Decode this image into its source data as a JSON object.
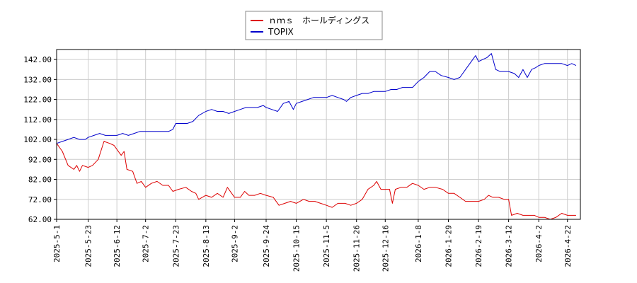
{
  "chart_data": {
    "type": "line",
    "title": "",
    "xlabel": "",
    "ylabel": "",
    "ylim": [
      62,
      147
    ],
    "yticks": [
      "142.00",
      "132.00",
      "122.00",
      "112.00",
      "102.00",
      "92.00",
      "82.00",
      "72.00",
      "62.00"
    ],
    "xlim": [
      "2025-05-01",
      "2026-05-01"
    ],
    "xticks": [
      "2025-5-1",
      "2025-5-23",
      "2025-6-12",
      "2025-7-2",
      "2025-7-23",
      "2025-8-13",
      "2025-9-2",
      "2025-9-24",
      "2025-10-15",
      "2025-11-5",
      "2025-11-26",
      "2025-12-16",
      "2026-1-8",
      "2026-1-29",
      "2026-2-19",
      "2026-3-12",
      "2026-4-2",
      "2026-4-22"
    ],
    "grid": true,
    "legend_position": "top-center",
    "series": [
      {
        "name": "ｎｍｓ　ホールディングス",
        "color": "#dd0000",
        "points": [
          [
            "2025-05-01",
            100
          ],
          [
            "2025-05-05",
            96
          ],
          [
            "2025-05-09",
            89
          ],
          [
            "2025-05-13",
            87
          ],
          [
            "2025-05-15",
            89
          ],
          [
            "2025-05-17",
            86
          ],
          [
            "2025-05-19",
            89
          ],
          [
            "2025-05-23",
            88
          ],
          [
            "2025-05-26",
            89
          ],
          [
            "2025-05-30",
            92
          ],
          [
            "2025-06-03",
            101
          ],
          [
            "2025-06-07",
            100
          ],
          [
            "2025-06-10",
            99
          ],
          [
            "2025-06-12",
            97
          ],
          [
            "2025-06-15",
            94
          ],
          [
            "2025-06-17",
            96
          ],
          [
            "2025-06-19",
            87
          ],
          [
            "2025-06-23",
            86
          ],
          [
            "2025-06-26",
            80
          ],
          [
            "2025-06-29",
            81
          ],
          [
            "2025-07-02",
            78
          ],
          [
            "2025-07-06",
            80
          ],
          [
            "2025-07-10",
            81
          ],
          [
            "2025-07-14",
            79
          ],
          [
            "2025-07-18",
            79
          ],
          [
            "2025-07-21",
            76
          ],
          [
            "2025-07-25",
            77
          ],
          [
            "2025-07-30",
            78
          ],
          [
            "2025-08-03",
            76
          ],
          [
            "2025-08-06",
            75
          ],
          [
            "2025-08-08",
            72
          ],
          [
            "2025-08-13",
            74
          ],
          [
            "2025-08-17",
            73
          ],
          [
            "2025-08-21",
            75
          ],
          [
            "2025-08-25",
            73
          ],
          [
            "2025-08-28",
            78
          ],
          [
            "2025-09-02",
            73
          ],
          [
            "2025-09-06",
            73
          ],
          [
            "2025-09-09",
            76
          ],
          [
            "2025-09-12",
            74
          ],
          [
            "2025-09-16",
            74
          ],
          [
            "2025-09-20",
            75
          ],
          [
            "2025-09-24",
            74
          ],
          [
            "2025-09-29",
            73
          ],
          [
            "2025-10-03",
            69
          ],
          [
            "2025-10-07",
            70
          ],
          [
            "2025-10-11",
            71
          ],
          [
            "2025-10-15",
            70
          ],
          [
            "2025-10-20",
            72
          ],
          [
            "2025-10-24",
            71
          ],
          [
            "2025-10-28",
            71
          ],
          [
            "2025-11-01",
            70
          ],
          [
            "2025-11-05",
            69
          ],
          [
            "2025-11-09",
            68
          ],
          [
            "2025-11-13",
            70
          ],
          [
            "2025-11-18",
            70
          ],
          [
            "2025-11-22",
            69
          ],
          [
            "2025-11-26",
            70
          ],
          [
            "2025-11-30",
            72
          ],
          [
            "2025-12-04",
            77
          ],
          [
            "2025-12-08",
            79
          ],
          [
            "2025-12-10",
            81
          ],
          [
            "2025-12-13",
            77
          ],
          [
            "2025-12-16",
            77
          ],
          [
            "2025-12-19",
            77
          ],
          [
            "2025-12-21",
            70
          ],
          [
            "2025-12-23",
            77
          ],
          [
            "2025-12-27",
            78
          ],
          [
            "2025-12-31",
            78
          ],
          [
            "2026-01-04",
            80
          ],
          [
            "2026-01-08",
            79
          ],
          [
            "2026-01-12",
            77
          ],
          [
            "2026-01-16",
            78
          ],
          [
            "2026-01-20",
            78
          ],
          [
            "2026-01-25",
            77
          ],
          [
            "2026-01-29",
            75
          ],
          [
            "2026-02-02",
            75
          ],
          [
            "2026-02-06",
            73
          ],
          [
            "2026-02-10",
            71
          ],
          [
            "2026-02-14",
            71
          ],
          [
            "2026-02-19",
            71
          ],
          [
            "2026-02-23",
            72
          ],
          [
            "2026-02-26",
            74
          ],
          [
            "2026-03-01",
            73
          ],
          [
            "2026-03-05",
            73
          ],
          [
            "2026-03-09",
            72
          ],
          [
            "2026-03-12",
            72
          ],
          [
            "2026-03-14",
            64
          ],
          [
            "2026-03-18",
            65
          ],
          [
            "2026-03-22",
            64
          ],
          [
            "2026-03-26",
            64
          ],
          [
            "2026-03-30",
            64
          ],
          [
            "2026-04-02",
            63
          ],
          [
            "2026-04-06",
            63
          ],
          [
            "2026-04-10",
            62
          ],
          [
            "2026-04-14",
            63
          ],
          [
            "2026-04-18",
            65
          ],
          [
            "2026-04-22",
            64
          ],
          [
            "2026-04-26",
            64
          ],
          [
            "2026-04-28",
            64
          ]
        ]
      },
      {
        "name": "TOPIX",
        "color": "#0000cc",
        "points": [
          [
            "2025-05-01",
            100
          ],
          [
            "2025-05-05",
            101
          ],
          [
            "2025-05-09",
            102
          ],
          [
            "2025-05-13",
            103
          ],
          [
            "2025-05-17",
            102
          ],
          [
            "2025-05-21",
            102
          ],
          [
            "2025-05-23",
            103
          ],
          [
            "2025-05-27",
            104
          ],
          [
            "2025-05-31",
            105
          ],
          [
            "2025-06-04",
            104
          ],
          [
            "2025-06-08",
            104
          ],
          [
            "2025-06-12",
            104
          ],
          [
            "2025-06-16",
            105
          ],
          [
            "2025-06-20",
            104
          ],
          [
            "2025-06-24",
            105
          ],
          [
            "2025-06-28",
            106
          ],
          [
            "2025-07-02",
            106
          ],
          [
            "2025-07-06",
            106
          ],
          [
            "2025-07-10",
            106
          ],
          [
            "2025-07-14",
            106
          ],
          [
            "2025-07-18",
            106
          ],
          [
            "2025-07-21",
            107
          ],
          [
            "2025-07-23",
            110
          ],
          [
            "2025-07-27",
            110
          ],
          [
            "2025-07-31",
            110
          ],
          [
            "2025-08-04",
            111
          ],
          [
            "2025-08-08",
            114
          ],
          [
            "2025-08-13",
            116
          ],
          [
            "2025-08-17",
            117
          ],
          [
            "2025-08-21",
            116
          ],
          [
            "2025-08-25",
            116
          ],
          [
            "2025-08-29",
            115
          ],
          [
            "2025-09-02",
            116
          ],
          [
            "2025-09-06",
            117
          ],
          [
            "2025-09-10",
            118
          ],
          [
            "2025-09-14",
            118
          ],
          [
            "2025-09-18",
            118
          ],
          [
            "2025-09-22",
            119
          ],
          [
            "2025-09-24",
            118
          ],
          [
            "2025-09-28",
            117
          ],
          [
            "2025-10-02",
            116
          ],
          [
            "2025-10-06",
            120
          ],
          [
            "2025-10-10",
            121
          ],
          [
            "2025-10-13",
            117
          ],
          [
            "2025-10-15",
            120
          ],
          [
            "2025-10-19",
            121
          ],
          [
            "2025-10-23",
            122
          ],
          [
            "2025-10-27",
            123
          ],
          [
            "2025-10-31",
            123
          ],
          [
            "2025-11-05",
            123
          ],
          [
            "2025-11-09",
            124
          ],
          [
            "2025-11-13",
            123
          ],
          [
            "2025-11-17",
            122
          ],
          [
            "2025-11-19",
            121
          ],
          [
            "2025-11-22",
            123
          ],
          [
            "2025-11-26",
            124
          ],
          [
            "2025-11-30",
            125
          ],
          [
            "2025-12-04",
            125
          ],
          [
            "2025-12-08",
            126
          ],
          [
            "2025-12-12",
            126
          ],
          [
            "2025-12-16",
            126
          ],
          [
            "2025-12-20",
            127
          ],
          [
            "2025-12-24",
            127
          ],
          [
            "2025-12-28",
            128
          ],
          [
            "2026-01-01",
            128
          ],
          [
            "2026-01-04",
            128
          ],
          [
            "2026-01-08",
            131
          ],
          [
            "2026-01-12",
            133
          ],
          [
            "2026-01-16",
            136
          ],
          [
            "2026-01-20",
            136
          ],
          [
            "2026-01-24",
            134
          ],
          [
            "2026-01-29",
            133
          ],
          [
            "2026-02-02",
            132
          ],
          [
            "2026-02-06",
            133
          ],
          [
            "2026-02-10",
            137
          ],
          [
            "2026-02-14",
            141
          ],
          [
            "2026-02-17",
            144
          ],
          [
            "2026-02-19",
            141
          ],
          [
            "2026-02-22",
            142
          ],
          [
            "2026-02-25",
            143
          ],
          [
            "2026-02-28",
            145
          ],
          [
            "2026-03-03",
            137
          ],
          [
            "2026-03-06",
            136
          ],
          [
            "2026-03-09",
            136
          ],
          [
            "2026-03-12",
            136
          ],
          [
            "2026-03-16",
            135
          ],
          [
            "2026-03-19",
            133
          ],
          [
            "2026-03-22",
            137
          ],
          [
            "2026-03-25",
            133
          ],
          [
            "2026-03-28",
            137
          ],
          [
            "2026-03-31",
            138
          ],
          [
            "2026-04-02",
            139
          ],
          [
            "2026-04-06",
            140
          ],
          [
            "2026-04-10",
            140
          ],
          [
            "2026-04-14",
            140
          ],
          [
            "2026-04-18",
            140
          ],
          [
            "2026-04-22",
            139
          ],
          [
            "2026-04-25",
            140
          ],
          [
            "2026-04-28",
            139
          ]
        ]
      }
    ]
  }
}
